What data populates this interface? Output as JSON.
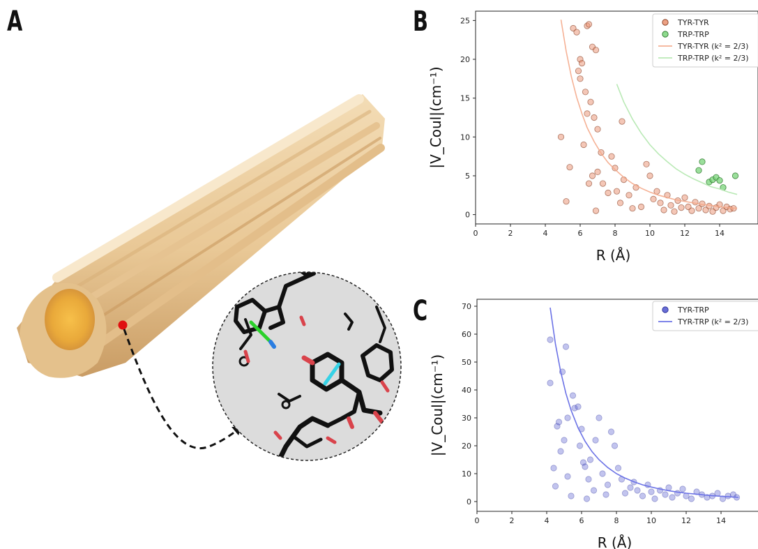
{
  "panels": {
    "a": "A",
    "b": "B",
    "c": "C"
  },
  "colors": {
    "fibril": "#f0d2a5",
    "fibril_core": "#f2b94a",
    "tyr_tyr": "#e9906f",
    "trp_trp": "#7ad47a",
    "tyr_trp": "#4f55cf",
    "marker": "#e01010"
  },
  "chart_data": [
    {
      "id": "B",
      "type": "scatter",
      "xlabel": "R (Å)",
      "ylabel": "|V_Coul|(cm⁻¹)",
      "xlim": [
        0,
        15
      ],
      "ylim": [
        -1.2,
        26.2
      ],
      "xticks": [
        0,
        2,
        4,
        6,
        8,
        10,
        12,
        14
      ],
      "yticks": [
        0,
        5,
        10,
        15,
        20,
        25
      ],
      "legend": {
        "placement": "top-right",
        "entries": [
          "TYR-TYR",
          "TRP-TRP",
          "TYR-TYR (k² = 2/3)",
          "TRP-TRP (k² = 2/3)"
        ]
      },
      "series": [
        {
          "name": "TYR-TYR",
          "kind": "points",
          "points": [
            [
              4.9,
              10.0
            ],
            [
              5.2,
              1.7
            ],
            [
              5.4,
              6.1
            ],
            [
              5.6,
              24.0
            ],
            [
              5.8,
              23.5
            ],
            [
              5.9,
              18.5
            ],
            [
              6.0,
              20.0
            ],
            [
              6.0,
              17.5
            ],
            [
              6.1,
              19.5
            ],
            [
              6.2,
              9.0
            ],
            [
              6.3,
              15.8
            ],
            [
              6.4,
              13.0
            ],
            [
              6.4,
              24.3
            ],
            [
              6.5,
              24.5
            ],
            [
              6.6,
              14.5
            ],
            [
              6.7,
              21.6
            ],
            [
              6.8,
              12.5
            ],
            [
              6.9,
              21.2
            ],
            [
              7.0,
              11.0
            ],
            [
              7.2,
              8.0
            ],
            [
              7.0,
              5.5
            ],
            [
              7.3,
              4.0
            ],
            [
              6.5,
              4.0
            ],
            [
              6.7,
              5.0
            ],
            [
              6.9,
              0.5
            ],
            [
              7.6,
              2.8
            ],
            [
              7.8,
              7.5
            ],
            [
              8.0,
              6.0
            ],
            [
              8.1,
              3.0
            ],
            [
              8.3,
              1.5
            ],
            [
              8.4,
              12.0
            ],
            [
              8.5,
              4.5
            ],
            [
              8.8,
              2.5
            ],
            [
              9.0,
              0.8
            ],
            [
              9.2,
              3.5
            ],
            [
              9.5,
              1.0
            ],
            [
              9.8,
              6.5
            ],
            [
              10.0,
              5.0
            ],
            [
              10.2,
              2.0
            ],
            [
              10.4,
              3.0
            ],
            [
              10.6,
              1.5
            ],
            [
              10.8,
              0.6
            ],
            [
              11.0,
              2.5
            ],
            [
              11.2,
              1.2
            ],
            [
              11.4,
              0.4
            ],
            [
              11.6,
              1.8
            ],
            [
              11.8,
              0.9
            ],
            [
              12.0,
              2.2
            ],
            [
              12.2,
              1.0
            ],
            [
              12.4,
              0.5
            ],
            [
              12.6,
              1.6
            ],
            [
              12.8,
              0.8
            ],
            [
              13.0,
              1.4
            ],
            [
              13.2,
              0.6
            ],
            [
              13.4,
              1.1
            ],
            [
              13.6,
              0.4
            ],
            [
              13.8,
              0.9
            ],
            [
              14.0,
              1.3
            ],
            [
              14.2,
              0.5
            ],
            [
              14.4,
              1.0
            ],
            [
              14.6,
              0.7
            ],
            [
              14.8,
              0.8
            ]
          ]
        },
        {
          "name": "TRP-TRP",
          "kind": "points",
          "points": [
            [
              12.8,
              5.7
            ],
            [
              13.0,
              6.8
            ],
            [
              13.4,
              4.2
            ],
            [
              13.6,
              4.5
            ],
            [
              13.8,
              4.8
            ],
            [
              14.0,
              4.4
            ],
            [
              14.2,
              3.5
            ],
            [
              14.9,
              5.0
            ]
          ]
        },
        {
          "name": "TYR-TYR (k² = 2/3)",
          "kind": "curve",
          "x": [
            4.9,
            5.2,
            5.5,
            5.8,
            6.1,
            6.4,
            6.8,
            7.2,
            7.6,
            8.0,
            8.5,
            9.0,
            9.5,
            10.0,
            10.5,
            11.0,
            11.5,
            12.0,
            12.5,
            13.0,
            13.5,
            14.0,
            14.5,
            15.0
          ],
          "y": [
            25.1,
            21.0,
            17.7,
            15.1,
            13.0,
            11.2,
            9.4,
            7.9,
            6.7,
            5.8,
            4.8,
            4.0,
            3.4,
            2.9,
            2.5,
            2.2,
            1.9,
            1.7,
            1.5,
            1.3,
            1.2,
            1.0,
            0.9,
            0.8
          ]
        },
        {
          "name": "TRP-TRP (k² = 2/3)",
          "kind": "curve",
          "x": [
            8.1,
            8.5,
            9.0,
            9.5,
            10.0,
            10.5,
            11.0,
            11.5,
            12.0,
            12.5,
            13.0,
            13.5,
            14.0,
            14.5,
            15.0
          ],
          "y": [
            16.8,
            14.5,
            12.3,
            10.5,
            9.0,
            7.8,
            6.8,
            5.9,
            5.2,
            4.6,
            4.1,
            3.6,
            3.3,
            2.9,
            2.6
          ]
        }
      ]
    },
    {
      "id": "C",
      "type": "scatter",
      "xlabel": "R (Å)",
      "ylabel": "|V_Coul|(cm⁻¹)",
      "xlim": [
        0,
        15
      ],
      "ylim": [
        -3.5,
        72.5
      ],
      "xticks": [
        0,
        2,
        4,
        6,
        8,
        10,
        12,
        14
      ],
      "yticks": [
        0,
        10,
        20,
        30,
        40,
        50,
        60,
        70
      ],
      "legend": {
        "placement": "top-right",
        "entries": [
          "TYR-TRP",
          "TYR-TRP (k² = 2/3)"
        ]
      },
      "series": [
        {
          "name": "TYR-TRP",
          "kind": "points",
          "points": [
            [
              4.2,
              58.0
            ],
            [
              4.2,
              42.5
            ],
            [
              4.4,
              12.0
            ],
            [
              4.5,
              5.5
            ],
            [
              4.6,
              27.0
            ],
            [
              4.7,
              28.5
            ],
            [
              4.8,
              18.0
            ],
            [
              4.9,
              46.5
            ],
            [
              5.0,
              22.0
            ],
            [
              5.1,
              55.5
            ],
            [
              5.2,
              30.0
            ],
            [
              5.2,
              9.0
            ],
            [
              5.4,
              2.0
            ],
            [
              5.5,
              38.0
            ],
            [
              5.6,
              33.5
            ],
            [
              5.8,
              34.0
            ],
            [
              5.9,
              20.0
            ],
            [
              6.0,
              26.0
            ],
            [
              6.1,
              14.0
            ],
            [
              6.2,
              12.5
            ],
            [
              6.3,
              1.0
            ],
            [
              6.4,
              8.0
            ],
            [
              6.5,
              15.0
            ],
            [
              6.7,
              4.0
            ],
            [
              6.8,
              22.0
            ],
            [
              7.0,
              30.0
            ],
            [
              7.2,
              10.0
            ],
            [
              7.4,
              2.5
            ],
            [
              7.5,
              6.0
            ],
            [
              7.7,
              25.0
            ],
            [
              7.9,
              20.0
            ],
            [
              8.1,
              12.0
            ],
            [
              8.3,
              8.0
            ],
            [
              8.5,
              3.0
            ],
            [
              8.8,
              5.0
            ],
            [
              9.0,
              7.0
            ],
            [
              9.2,
              4.0
            ],
            [
              9.5,
              2.0
            ],
            [
              9.8,
              6.0
            ],
            [
              10.0,
              3.5
            ],
            [
              10.2,
              1.0
            ],
            [
              10.5,
              4.0
            ],
            [
              10.8,
              2.5
            ],
            [
              11.0,
              5.0
            ],
            [
              11.2,
              1.5
            ],
            [
              11.5,
              3.0
            ],
            [
              11.8,
              4.5
            ],
            [
              12.0,
              2.0
            ],
            [
              12.3,
              1.0
            ],
            [
              12.6,
              3.5
            ],
            [
              12.9,
              2.5
            ],
            [
              13.2,
              1.5
            ],
            [
              13.5,
              2.0
            ],
            [
              13.8,
              3.0
            ],
            [
              14.1,
              1.0
            ],
            [
              14.4,
              2.0
            ],
            [
              14.7,
              2.5
            ],
            [
              14.9,
              1.5
            ]
          ]
        },
        {
          "name": "TYR-TRP (k² = 2/3)",
          "kind": "curve",
          "x": [
            4.2,
            4.5,
            4.8,
            5.1,
            5.4,
            5.8,
            6.2,
            6.6,
            7.0,
            7.5,
            8.0,
            8.5,
            9.0,
            9.5,
            10.0,
            10.5,
            11.0,
            11.5,
            12.0,
            12.5,
            13.0,
            13.5,
            14.0,
            14.5,
            15.0
          ],
          "y": [
            69.5,
            56.5,
            46.6,
            38.8,
            32.7,
            26.4,
            21.6,
            17.9,
            15.0,
            12.2,
            10.0,
            8.4,
            7.1,
            6.0,
            5.2,
            4.5,
            3.9,
            3.4,
            3.0,
            2.7,
            2.4,
            2.1,
            1.9,
            1.7,
            1.5
          ]
        }
      ]
    }
  ]
}
